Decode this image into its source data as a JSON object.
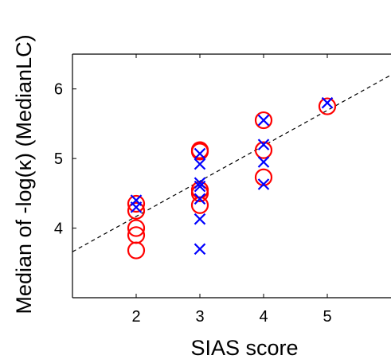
{
  "chart_data": {
    "type": "scatter",
    "title": "",
    "xlabel": "SIAS score",
    "ylabel": "Median of -log(κ) (MedianLC)",
    "xlim": [
      1,
      6
    ],
    "ylim": [
      3,
      6.5
    ],
    "xticks": [
      2,
      3,
      4,
      5
    ],
    "yticks": [
      4,
      5,
      6
    ],
    "grid": false,
    "legend": "none",
    "series": [
      {
        "marker": "circle",
        "color": "#ff0000",
        "points": [
          {
            "x": 2,
            "y": 4.35
          },
          {
            "x": 2,
            "y": 4.25
          },
          {
            "x": 2,
            "y": 4.0
          },
          {
            "x": 2,
            "y": 3.9
          },
          {
            "x": 2,
            "y": 3.68
          },
          {
            "x": 3,
            "y": 5.12
          },
          {
            "x": 3,
            "y": 5.1
          },
          {
            "x": 3,
            "y": 4.55
          },
          {
            "x": 3,
            "y": 4.5
          },
          {
            "x": 3,
            "y": 4.33
          },
          {
            "x": 4,
            "y": 5.55
          },
          {
            "x": 4,
            "y": 5.12
          },
          {
            "x": 4,
            "y": 4.73
          },
          {
            "x": 5,
            "y": 5.75
          }
        ]
      },
      {
        "marker": "x",
        "color": "#0000ff",
        "points": [
          {
            "x": 2,
            "y": 4.4
          },
          {
            "x": 2,
            "y": 4.3
          },
          {
            "x": 3,
            "y": 5.07
          },
          {
            "x": 3,
            "y": 4.92
          },
          {
            "x": 3,
            "y": 4.65
          },
          {
            "x": 3,
            "y": 4.6
          },
          {
            "x": 3,
            "y": 4.42
          },
          {
            "x": 3,
            "y": 4.13
          },
          {
            "x": 3,
            "y": 3.7
          },
          {
            "x": 4,
            "y": 5.55
          },
          {
            "x": 4,
            "y": 5.2
          },
          {
            "x": 4,
            "y": 4.95
          },
          {
            "x": 4,
            "y": 4.63
          },
          {
            "x": 5,
            "y": 5.8
          }
        ]
      }
    ],
    "fit_line": {
      "style": "dashed",
      "color": "#000000",
      "points": [
        {
          "x": 1,
          "y": 3.66
        },
        {
          "x": 6,
          "y": 6.2
        }
      ]
    }
  }
}
